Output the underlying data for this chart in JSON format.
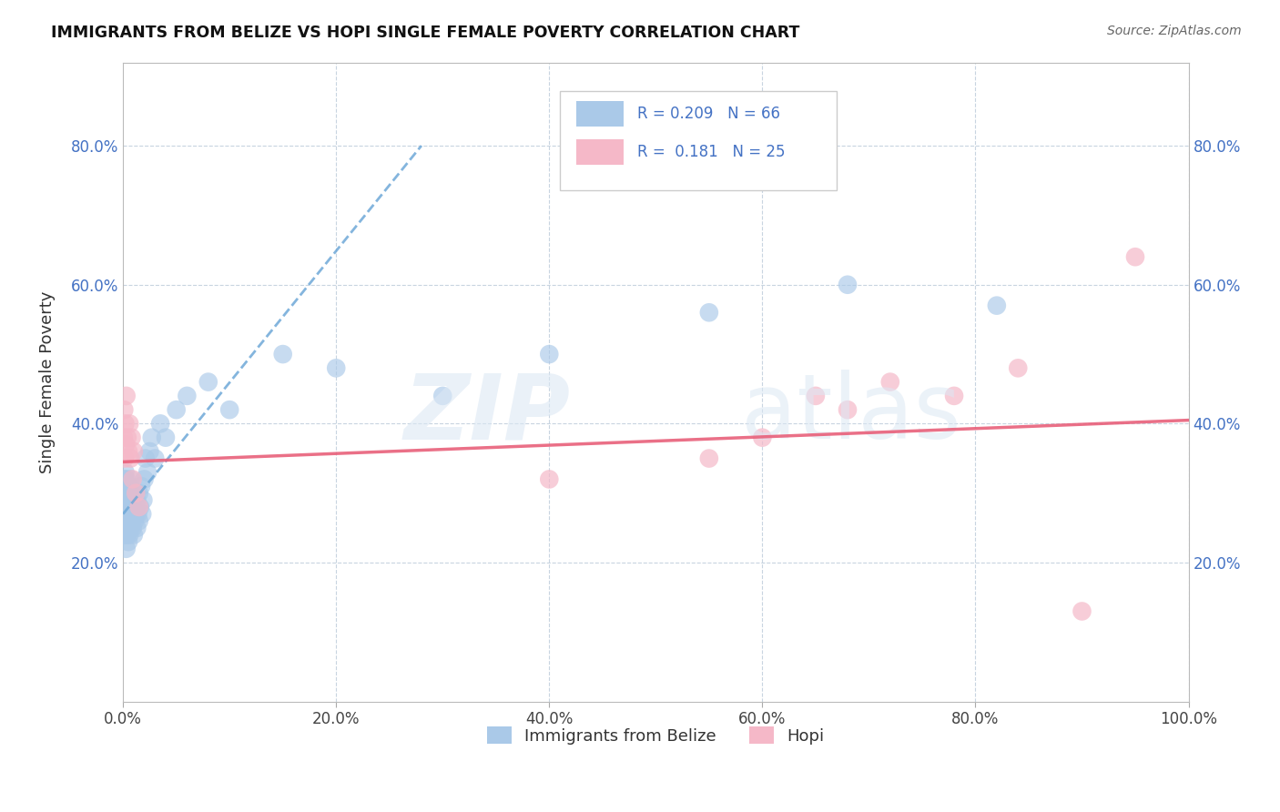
{
  "title": "IMMIGRANTS FROM BELIZE VS HOPI SINGLE FEMALE POVERTY CORRELATION CHART",
  "source": "Source: ZipAtlas.com",
  "ylabel": "Single Female Poverty",
  "xlim": [
    0.0,
    1.0
  ],
  "ylim": [
    0.0,
    0.92
  ],
  "xticks": [
    0.0,
    0.2,
    0.4,
    0.6,
    0.8,
    1.0
  ],
  "xticklabels": [
    "0.0%",
    "20.0%",
    "40.0%",
    "60.0%",
    "80.0%",
    "100.0%"
  ],
  "yticks": [
    0.2,
    0.4,
    0.6,
    0.8
  ],
  "yticklabels": [
    "20.0%",
    "40.0%",
    "60.0%",
    "80.0%"
  ],
  "blue_color": "#aac9e8",
  "pink_color": "#f5b8c8",
  "blue_line_color": "#6ea8d8",
  "pink_line_color": "#e8607a",
  "blue_scatter_x": [
    0.0005,
    0.001,
    0.001,
    0.0015,
    0.0015,
    0.002,
    0.002,
    0.002,
    0.0025,
    0.0025,
    0.003,
    0.003,
    0.003,
    0.003,
    0.0035,
    0.004,
    0.004,
    0.004,
    0.0045,
    0.005,
    0.005,
    0.005,
    0.005,
    0.006,
    0.006,
    0.006,
    0.007,
    0.007,
    0.007,
    0.008,
    0.008,
    0.009,
    0.009,
    0.01,
    0.01,
    0.011,
    0.011,
    0.012,
    0.013,
    0.013,
    0.014,
    0.015,
    0.015,
    0.016,
    0.017,
    0.018,
    0.019,
    0.02,
    0.021,
    0.023,
    0.025,
    0.027,
    0.03,
    0.035,
    0.04,
    0.05,
    0.06,
    0.08,
    0.1,
    0.15,
    0.2,
    0.3,
    0.4,
    0.55,
    0.68,
    0.82
  ],
  "blue_scatter_y": [
    0.28,
    0.24,
    0.3,
    0.26,
    0.32,
    0.25,
    0.28,
    0.33,
    0.24,
    0.3,
    0.22,
    0.26,
    0.29,
    0.32,
    0.27,
    0.24,
    0.28,
    0.31,
    0.26,
    0.23,
    0.25,
    0.27,
    0.3,
    0.24,
    0.27,
    0.31,
    0.25,
    0.28,
    0.32,
    0.26,
    0.3,
    0.25,
    0.29,
    0.24,
    0.28,
    0.26,
    0.3,
    0.27,
    0.25,
    0.29,
    0.27,
    0.26,
    0.3,
    0.28,
    0.31,
    0.27,
    0.29,
    0.32,
    0.35,
    0.33,
    0.36,
    0.38,
    0.35,
    0.4,
    0.38,
    0.42,
    0.44,
    0.46,
    0.42,
    0.5,
    0.48,
    0.44,
    0.5,
    0.56,
    0.6,
    0.57
  ],
  "pink_scatter_x": [
    0.0005,
    0.001,
    0.0015,
    0.002,
    0.0025,
    0.003,
    0.004,
    0.005,
    0.006,
    0.007,
    0.008,
    0.009,
    0.01,
    0.012,
    0.015,
    0.4,
    0.55,
    0.6,
    0.65,
    0.68,
    0.72,
    0.78,
    0.84,
    0.9,
    0.95
  ],
  "pink_scatter_y": [
    0.38,
    0.42,
    0.35,
    0.4,
    0.37,
    0.44,
    0.38,
    0.36,
    0.4,
    0.35,
    0.38,
    0.32,
    0.36,
    0.3,
    0.28,
    0.32,
    0.35,
    0.38,
    0.44,
    0.42,
    0.46,
    0.44,
    0.48,
    0.13,
    0.64
  ],
  "blue_line_x_start": 0.0,
  "blue_line_x_end": 0.28,
  "pink_line_x_start": 0.0,
  "pink_line_x_end": 1.0,
  "pink_line_y_start": 0.345,
  "pink_line_y_end": 0.405
}
